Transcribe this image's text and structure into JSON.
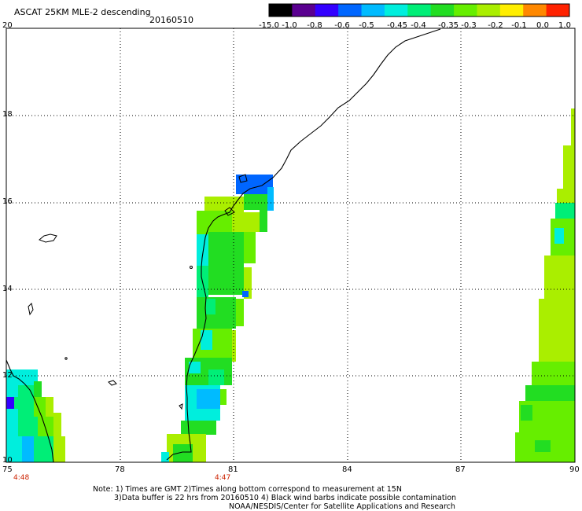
{
  "header": {
    "title": "ASCAT 25KM MLE-2 descending",
    "date": "20160510"
  },
  "colorbar": {
    "labels": [
      "-15.0",
      "-1.0",
      "-0.8",
      "-0.6",
      "-0.5",
      "-0.45",
      "-0.4",
      "-0.35",
      "-0.3",
      "-0.2",
      "-0.1",
      "0.0",
      "1.0"
    ],
    "colors": [
      "#000000",
      "#5a0090",
      "#3300ff",
      "#0066ff",
      "#00bbff",
      "#00eedd",
      "#00ee77",
      "#22dd22",
      "#66ee00",
      "#aaee00",
      "#ffee00",
      "#ff8800",
      "#ff2200"
    ]
  },
  "axes": {
    "x_ticks": [
      "75",
      "78",
      "81",
      "84",
      "87",
      "90"
    ],
    "y_ticks": [
      "20",
      "18",
      "16",
      "14",
      "12",
      "10"
    ],
    "grid": "dotted"
  },
  "time_labels": [
    "4:48",
    "4:47"
  ],
  "notes": [
    "Note: 1) Times are GMT 2)Times along bottom correspond to measurement at 15N",
    "3)Data buffer is 22 hrs from 20160510 4) Black wind barbs indicate possible contamination",
    "NOAA/NESDIS/Center for Satellite Applications and Research"
  ]
}
